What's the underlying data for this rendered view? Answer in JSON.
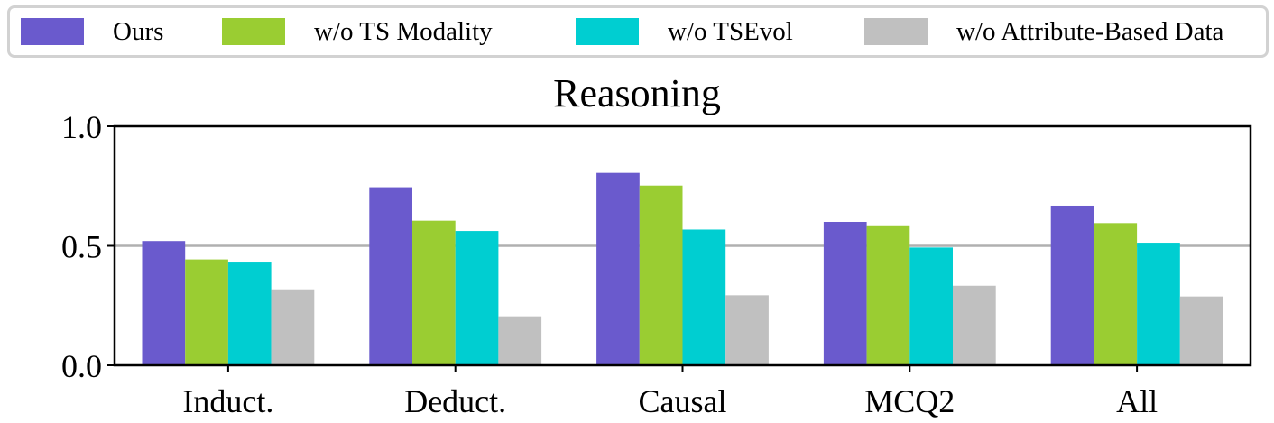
{
  "chart_data": {
    "type": "bar",
    "title": "Reasoning",
    "xlabel": "",
    "ylabel": "",
    "categories": [
      "Induct.",
      "Deduct.",
      "Causal",
      "MCQ2",
      "All"
    ],
    "series": [
      {
        "name": "Ours",
        "color": "#6a5acd",
        "values": [
          0.52,
          0.745,
          0.805,
          0.6,
          0.668
        ]
      },
      {
        "name": "w/o TS Modality",
        "color": "#9acd32",
        "values": [
          0.443,
          0.605,
          0.752,
          0.582,
          0.595
        ]
      },
      {
        "name": "w/o TSEvol",
        "color": "#00ced1",
        "values": [
          0.43,
          0.562,
          0.568,
          0.493,
          0.513
        ]
      },
      {
        "name": "w/o Attribute-Based Data",
        "color": "#c0c0c0",
        "values": [
          0.318,
          0.205,
          0.293,
          0.333,
          0.288
        ]
      }
    ],
    "ylim": [
      0.0,
      1.0
    ],
    "yticks": [
      0.0,
      0.5,
      1.0
    ],
    "ytick_labels": [
      "0.0",
      "0.5",
      "1.0"
    ],
    "reference_line": 0.5,
    "legend_position": "top"
  }
}
